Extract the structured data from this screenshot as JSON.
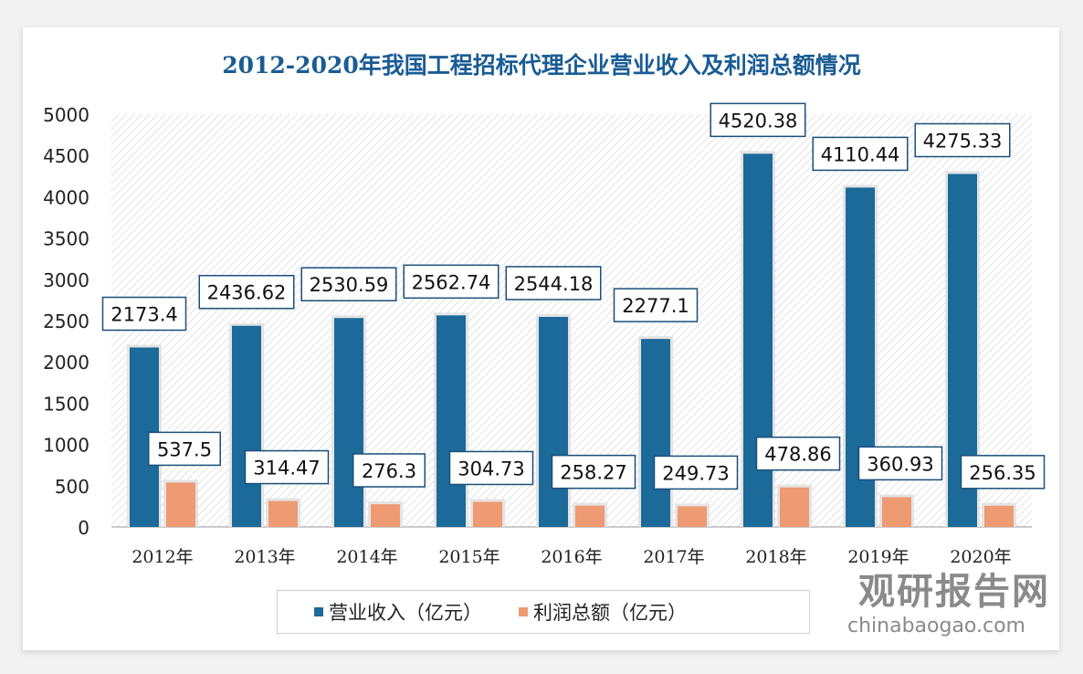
{
  "chart_data": {
    "type": "bar",
    "title": "2012-2020年我国工程招标代理企业营业收入及利润总额情况",
    "categories": [
      "2012年",
      "2013年",
      "2014年",
      "2015年",
      "2016年",
      "2017年",
      "2018年",
      "2019年",
      "2020年"
    ],
    "series": [
      {
        "name": "营业收入（亿元）",
        "color": "#1b6a99",
        "values": [
          2173.4,
          2436.62,
          2530.59,
          2562.74,
          2544.18,
          2277.1,
          4520.38,
          4110.44,
          4275.33
        ]
      },
      {
        "name": "利润总额（亿元）",
        "color": "#ee9a72",
        "values": [
          537.5,
          314.47,
          276.3,
          304.73,
          258.27,
          249.73,
          478.86,
          360.93,
          256.35
        ]
      }
    ],
    "data_labels": [
      [
        "2173.4",
        "2436.62",
        "2530.59",
        "2562.74",
        "2544.18",
        "2277.1",
        "4520.38",
        "4110.44",
        "4275.33"
      ],
      [
        "537.5",
        "314.47",
        "276.3",
        "304.73",
        "258.27",
        "249.73",
        "478.86",
        "360.93",
        "256.35"
      ]
    ],
    "yticks": [
      "0",
      "500",
      "1000",
      "1500",
      "2000",
      "2500",
      "3000",
      "3500",
      "4000",
      "4500",
      "5000"
    ],
    "ylim": [
      0,
      5000
    ],
    "grid": false,
    "legend_position": "bottom"
  },
  "watermark": {
    "name": "观研报告网",
    "url": "chinabaogao.com"
  }
}
